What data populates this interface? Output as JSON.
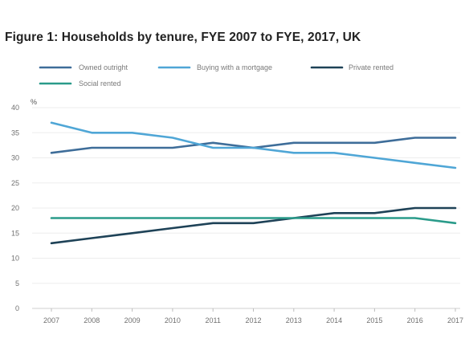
{
  "page": {
    "top_fragment": "",
    "figure_title": "Figure 1: Households by tenure, FYE 2007 to FYE, 2017, UK"
  },
  "chart_data": {
    "type": "line",
    "title": "Figure 1: Households by tenure, FYE 2007 to FYE, 2017, UK",
    "xlabel": "",
    "ylabel": "%",
    "x": [
      "2007",
      "2008",
      "2009",
      "2010",
      "2011",
      "2012",
      "2013",
      "2014",
      "2015",
      "2016",
      "2017"
    ],
    "ylim": [
      0,
      40
    ],
    "yticks": [
      0,
      5,
      10,
      15,
      20,
      25,
      30,
      35,
      40
    ],
    "grid": "horizontal",
    "legend_position": "top",
    "series": [
      {
        "name": "Owned outright",
        "color": "#3e6d99",
        "values": [
          31,
          32,
          32,
          32,
          33,
          32,
          33,
          33,
          33,
          34,
          34
        ]
      },
      {
        "name": "Buying with a mortgage",
        "color": "#4fa6d6",
        "values": [
          37,
          35,
          35,
          34,
          32,
          32,
          31,
          31,
          30,
          29,
          28
        ]
      },
      {
        "name": "Private rented",
        "color": "#1e4257",
        "values": [
          13,
          14,
          15,
          16,
          17,
          17,
          18,
          19,
          19,
          20,
          20
        ]
      },
      {
        "name": "Social rented",
        "color": "#2a9b8a",
        "values": [
          18,
          18,
          18,
          18,
          18,
          18,
          18,
          18,
          18,
          18,
          17
        ]
      }
    ]
  }
}
